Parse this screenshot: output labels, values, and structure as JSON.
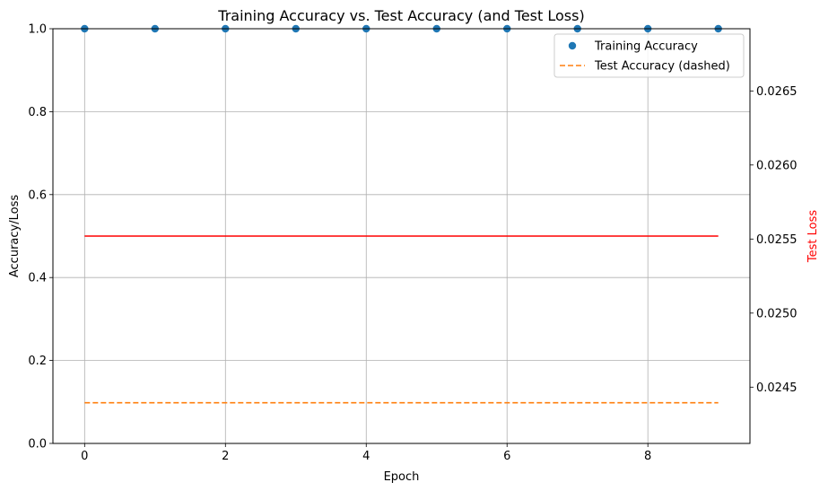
{
  "chart_data": {
    "type": "line",
    "title": "Training Accuracy vs. Test Accuracy (and Test Loss)",
    "xlabel": "Epoch",
    "ylabel": "Accuracy/Loss",
    "ylabel_right": "Test Loss",
    "xlim": [
      -0.45,
      9.45
    ],
    "ylim": [
      0,
      1
    ],
    "ylim_right": [
      0.02412,
      0.02692
    ],
    "x_ticks": [
      0,
      2,
      4,
      6,
      8
    ],
    "y_ticks": [
      0.0,
      0.2,
      0.4,
      0.6,
      0.8,
      1.0
    ],
    "y_ticks_right": [
      0.0245,
      0.025,
      0.0255,
      0.026,
      0.0265
    ],
    "grid": true,
    "legend_position": "top-right",
    "series": [
      {
        "name": "Training Accuracy",
        "style": "markers",
        "color": "#1f77b4",
        "axis": "left",
        "x": [
          0,
          1,
          2,
          3,
          4,
          5,
          6,
          7,
          8,
          9
        ],
        "values": [
          1.0,
          1.0,
          1.0,
          1.0,
          1.0,
          1.0,
          1.0,
          1.0,
          1.0,
          1.0
        ]
      },
      {
        "name": "Test Accuracy (dashed)",
        "style": "dashed",
        "color": "#ff7f0e",
        "axis": "left",
        "x": [
          0,
          1,
          2,
          3,
          4,
          5,
          6,
          7,
          8,
          9
        ],
        "values": [
          0.098,
          0.098,
          0.098,
          0.098,
          0.098,
          0.098,
          0.098,
          0.098,
          0.098,
          0.098
        ]
      },
      {
        "name": "",
        "style": "solid",
        "color": "#ff0000",
        "axis": "right",
        "x": [
          0,
          1,
          2,
          3,
          4,
          5,
          6,
          7,
          8,
          9
        ],
        "values": [
          0.02552,
          0.02552,
          0.02552,
          0.02552,
          0.02552,
          0.02552,
          0.02552,
          0.02552,
          0.02552,
          0.02552
        ]
      }
    ]
  }
}
